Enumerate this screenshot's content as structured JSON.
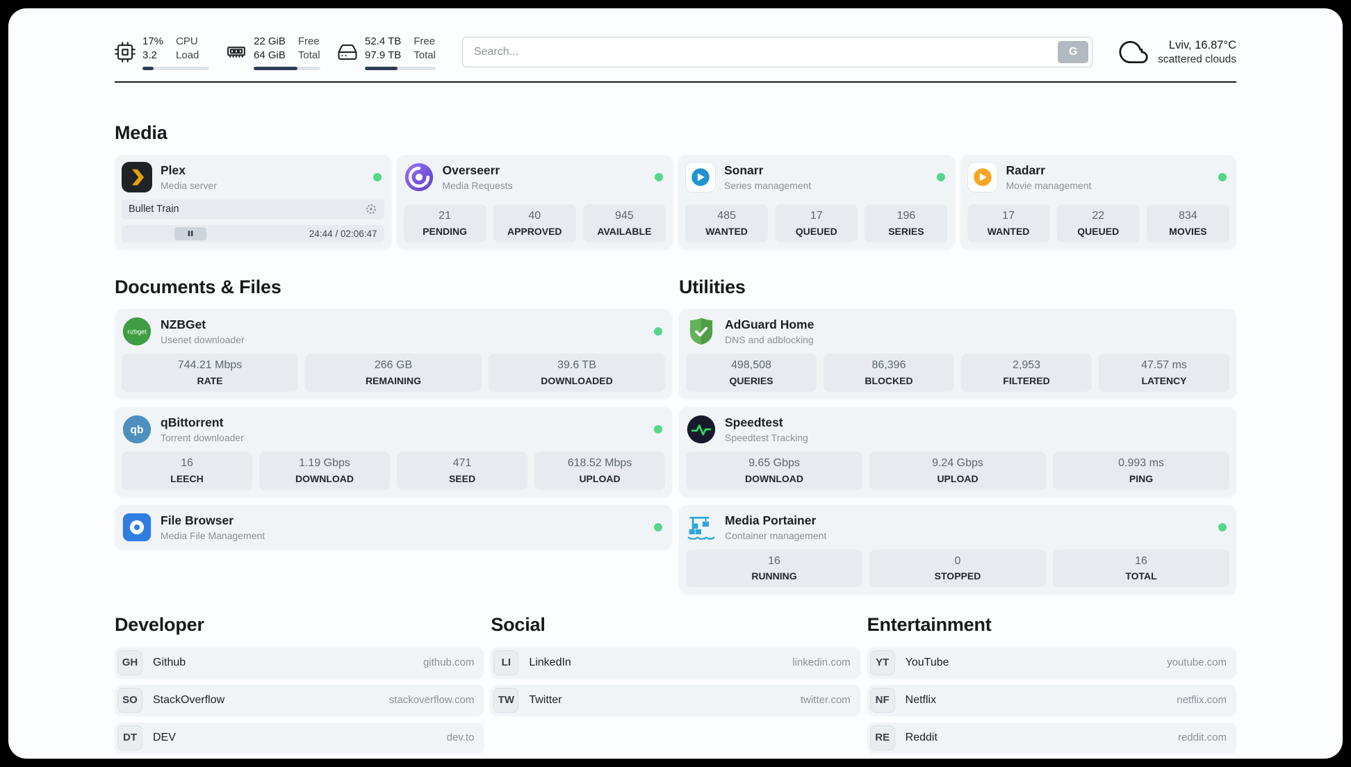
{
  "header": {
    "metrics": [
      {
        "value1": "17%",
        "value2": "3.2",
        "label1": "CPU",
        "label2": "Load",
        "progress": 17
      },
      {
        "value1": "22 GiB",
        "value2": "64 GiB",
        "label1": "Free",
        "label2": "Total",
        "progress": 66
      },
      {
        "value1": "52.4 TB",
        "value2": "97.9 TB",
        "label1": "Free",
        "label2": "Total",
        "progress": 46
      }
    ],
    "search": {
      "placeholder": "Search...",
      "engine_label": "G"
    },
    "weather": {
      "location": "Lviv, 16.87°C",
      "condition": "scattered clouds"
    }
  },
  "media": {
    "title": "Media",
    "plex": {
      "name": "Plex",
      "subtitle": "Media server",
      "status": "online",
      "now_playing": {
        "title": "Bullet Train",
        "time": "24:44 / 02:06:47",
        "progress": 20
      }
    },
    "overseerr": {
      "name": "Overseerr",
      "subtitle": "Media Requests",
      "status": "online",
      "stats": [
        {
          "value": "21",
          "label": "PENDING"
        },
        {
          "value": "40",
          "label": "APPROVED"
        },
        {
          "value": "945",
          "label": "AVAILABLE"
        }
      ]
    },
    "sonarr": {
      "name": "Sonarr",
      "subtitle": "Series management",
      "status": "online",
      "stats": [
        {
          "value": "485",
          "label": "WANTED"
        },
        {
          "value": "17",
          "label": "QUEUED"
        },
        {
          "value": "196",
          "label": "SERIES"
        }
      ]
    },
    "radarr": {
      "name": "Radarr",
      "subtitle": "Movie management",
      "status": "online",
      "stats": [
        {
          "value": "17",
          "label": "WANTED"
        },
        {
          "value": "22",
          "label": "QUEUED"
        },
        {
          "value": "834",
          "label": "MOVIES"
        }
      ]
    }
  },
  "documents": {
    "title": "Documents & Files",
    "nzbget": {
      "name": "NZBGet",
      "subtitle": "Usenet downloader",
      "status": "online",
      "stats": [
        {
          "value": "744.21 Mbps",
          "label": "RATE"
        },
        {
          "value": "266 GB",
          "label": "REMAINING"
        },
        {
          "value": "39.6 TB",
          "label": "DOWNLOADED"
        }
      ]
    },
    "qbittorrent": {
      "name": "qBittorrent",
      "subtitle": "Torrent downloader",
      "status": "online",
      "stats": [
        {
          "value": "16",
          "label": "LEECH"
        },
        {
          "value": "1.19 Gbps",
          "label": "DOWNLOAD"
        },
        {
          "value": "471",
          "label": "SEED"
        },
        {
          "value": "618.52 Mbps",
          "label": "UPLOAD"
        }
      ]
    },
    "filebrowser": {
      "name": "File Browser",
      "subtitle": "Media File Management",
      "status": "online"
    }
  },
  "utilities": {
    "title": "Utilities",
    "adguard": {
      "name": "AdGuard Home",
      "subtitle": "DNS and adblocking",
      "stats": [
        {
          "value": "498,508",
          "label": "QUERIES"
        },
        {
          "value": "86,396",
          "label": "BLOCKED"
        },
        {
          "value": "2,953",
          "label": "FILTERED"
        },
        {
          "value": "47.57 ms",
          "label": "LATENCY"
        }
      ]
    },
    "speedtest": {
      "name": "Speedtest",
      "subtitle": "Speedtest Tracking",
      "stats": [
        {
          "value": "9.65 Gbps",
          "label": "DOWNLOAD"
        },
        {
          "value": "9.24 Gbps",
          "label": "UPLOAD"
        },
        {
          "value": "0.993 ms",
          "label": "PING"
        }
      ]
    },
    "portainer": {
      "name": "Media Portainer",
      "subtitle": "Container management",
      "status": "online",
      "stats": [
        {
          "value": "16",
          "label": "RUNNING"
        },
        {
          "value": "0",
          "label": "STOPPED"
        },
        {
          "value": "16",
          "label": "TOTAL"
        }
      ]
    }
  },
  "bookmarks": {
    "developer": {
      "title": "Developer",
      "items": [
        {
          "abbr": "GH",
          "name": "Github",
          "url": "github.com"
        },
        {
          "abbr": "SO",
          "name": "StackOverflow",
          "url": "stackoverflow.com"
        },
        {
          "abbr": "DT",
          "name": "DEV",
          "url": "dev.to"
        }
      ]
    },
    "social": {
      "title": "Social",
      "items": [
        {
          "abbr": "LI",
          "name": "LinkedIn",
          "url": "linkedin.com"
        },
        {
          "abbr": "TW",
          "name": "Twitter",
          "url": "twitter.com"
        }
      ]
    },
    "entertainment": {
      "title": "Entertainment",
      "items": [
        {
          "abbr": "YT",
          "name": "YouTube",
          "url": "youtube.com"
        },
        {
          "abbr": "NF",
          "name": "Netflix",
          "url": "netflix.com"
        },
        {
          "abbr": "RE",
          "name": "Reddit",
          "url": "reddit.com"
        }
      ]
    }
  },
  "colors": {
    "status_online": "#55d68c",
    "usage_bar_fill": "#2c3e55",
    "card_background": "#f1f4f6",
    "stat_tile_background": "#e7ebef"
  }
}
